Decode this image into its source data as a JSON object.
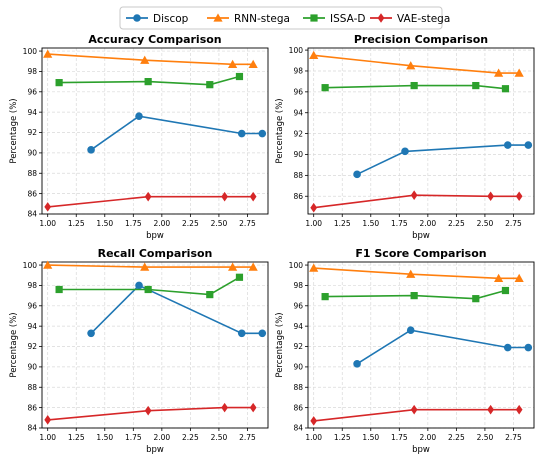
{
  "legend": {
    "placement": "top-center",
    "entries": [
      {
        "label": "Discop",
        "color": "#1f77b4",
        "marker": "circle"
      },
      {
        "label": "RNN-stega",
        "color": "#ff7f0e",
        "marker": "triangle"
      },
      {
        "label": "ISSA-D",
        "color": "#2ca02c",
        "marker": "square"
      },
      {
        "label": "VAE-stega",
        "color": "#d62728",
        "marker": "diamond"
      }
    ]
  },
  "chart_data": [
    {
      "type": "line",
      "title": "Accuracy Comparison",
      "xlabel": "bpw",
      "ylabel": "Percentage (%)",
      "xlim": [
        0.95,
        2.93
      ],
      "ylim": [
        84,
        100.3
      ],
      "xticks": [
        "1.00",
        "1.25",
        "1.50",
        "1.75",
        "2.00",
        "2.25",
        "2.50",
        "2.75"
      ],
      "yticks": [
        "84",
        "86",
        "88",
        "90",
        "92",
        "94",
        "96",
        "98",
        "100"
      ],
      "grid": true,
      "series": [
        {
          "name": "Discop",
          "x": [
            1.38,
            1.8,
            2.7,
            2.88
          ],
          "y": [
            90.3,
            93.6,
            91.9,
            91.9
          ]
        },
        {
          "name": "RNN-stega",
          "x": [
            1.0,
            1.85,
            2.62,
            2.8
          ],
          "y": [
            99.7,
            99.1,
            98.7,
            98.7
          ]
        },
        {
          "name": "ISSA-D",
          "x": [
            1.1,
            1.88,
            2.42,
            2.68
          ],
          "y": [
            96.9,
            97.0,
            96.7,
            97.5
          ]
        },
        {
          "name": "VAE-stega",
          "x": [
            1.0,
            1.88,
            2.55,
            2.8
          ],
          "y": [
            84.7,
            85.7,
            85.7,
            85.7
          ]
        }
      ]
    },
    {
      "type": "line",
      "title": "Precision Comparison",
      "xlabel": "bpw",
      "ylabel": "Percentage (%)",
      "xlim": [
        0.95,
        2.93
      ],
      "ylim": [
        84.3,
        100.2
      ],
      "xticks": [
        "1.00",
        "1.25",
        "1.50",
        "1.75",
        "2.00",
        "2.25",
        "2.50",
        "2.75"
      ],
      "yticks": [
        "86",
        "88",
        "90",
        "92",
        "94",
        "96",
        "98",
        "100"
      ],
      "grid": true,
      "series": [
        {
          "name": "Discop",
          "x": [
            1.38,
            1.8,
            2.7,
            2.88
          ],
          "y": [
            88.1,
            90.3,
            90.9,
            90.9
          ]
        },
        {
          "name": "RNN-stega",
          "x": [
            1.0,
            1.85,
            2.62,
            2.8
          ],
          "y": [
            99.5,
            98.5,
            97.8,
            97.8
          ]
        },
        {
          "name": "ISSA-D",
          "x": [
            1.1,
            1.88,
            2.42,
            2.68
          ],
          "y": [
            96.4,
            96.6,
            96.6,
            96.3
          ]
        },
        {
          "name": "VAE-stega",
          "x": [
            1.0,
            1.88,
            2.55,
            2.8
          ],
          "y": [
            84.9,
            86.1,
            86.0,
            86.0
          ]
        }
      ]
    },
    {
      "type": "line",
      "title": "Recall Comparison",
      "xlabel": "bpw",
      "ylabel": "Percentage (%)",
      "xlim": [
        0.95,
        2.93
      ],
      "ylim": [
        84,
        100.3
      ],
      "xticks": [
        "1.00",
        "1.25",
        "1.50",
        "1.75",
        "2.00",
        "2.25",
        "2.50",
        "2.75"
      ],
      "yticks": [
        "84",
        "86",
        "88",
        "90",
        "92",
        "94",
        "96",
        "98",
        "100"
      ],
      "grid": true,
      "series": [
        {
          "name": "Discop",
          "x": [
            1.38,
            1.8,
            2.7,
            2.88
          ],
          "y": [
            93.3,
            98.0,
            93.3,
            93.3
          ]
        },
        {
          "name": "RNN-stega",
          "x": [
            1.0,
            1.85,
            2.62,
            2.8
          ],
          "y": [
            100.0,
            99.8,
            99.8,
            99.8
          ]
        },
        {
          "name": "ISSA-D",
          "x": [
            1.1,
            1.88,
            2.42,
            2.68
          ],
          "y": [
            97.6,
            97.6,
            97.1,
            98.8
          ]
        },
        {
          "name": "VAE-stega",
          "x": [
            1.0,
            1.88,
            2.55,
            2.8
          ],
          "y": [
            84.8,
            85.7,
            86.0,
            86.0
          ]
        }
      ]
    },
    {
      "type": "line",
      "title": "F1 Score Comparison",
      "xlabel": "bpw",
      "ylabel": "Percentage (%)",
      "xlim": [
        0.95,
        2.93
      ],
      "ylim": [
        84,
        100.3
      ],
      "xticks": [
        "1.00",
        "1.25",
        "1.50",
        "1.75",
        "2.00",
        "2.25",
        "2.50",
        "2.75"
      ],
      "yticks": [
        "84",
        "86",
        "88",
        "90",
        "92",
        "94",
        "96",
        "98",
        "100"
      ],
      "grid": true,
      "series": [
        {
          "name": "Discop",
          "x": [
            1.38,
            1.85,
            2.7,
            2.88
          ],
          "y": [
            90.3,
            93.6,
            91.9,
            91.9
          ]
        },
        {
          "name": "RNN-stega",
          "x": [
            1.0,
            1.85,
            2.62,
            2.8
          ],
          "y": [
            99.7,
            99.1,
            98.7,
            98.7
          ]
        },
        {
          "name": "ISSA-D",
          "x": [
            1.1,
            1.88,
            2.42,
            2.68
          ],
          "y": [
            96.9,
            97.0,
            96.7,
            97.5
          ]
        },
        {
          "name": "VAE-stega",
          "x": [
            1.0,
            1.88,
            2.55,
            2.8
          ],
          "y": [
            84.7,
            85.8,
            85.8,
            85.8
          ]
        }
      ]
    }
  ]
}
